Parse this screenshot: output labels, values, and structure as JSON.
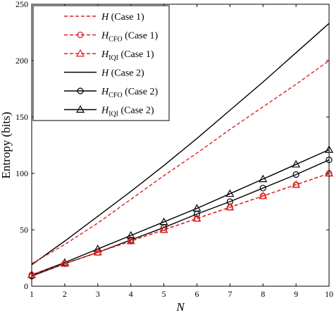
{
  "chart_data": {
    "type": "line",
    "xlabel": "N",
    "ylabel": "Entropy (bits)",
    "xlim": [
      1,
      10
    ],
    "ylim": [
      0,
      250
    ],
    "xticks": [
      1,
      2,
      3,
      4,
      5,
      6,
      7,
      8,
      9,
      10
    ],
    "yticks": [
      0,
      50,
      100,
      150,
      200,
      250
    ],
    "grid": false,
    "legend_position": "top-left",
    "x": [
      1,
      2,
      3,
      4,
      5,
      6,
      7,
      8,
      9,
      10
    ],
    "series": [
      {
        "id": "h-case1",
        "name_main": "H",
        "name_sub": "",
        "name_case": "(Case 1)",
        "color": "#e02020",
        "dash": "5,3",
        "marker": "none",
        "values": [
          20,
          37,
          56,
          77,
          98,
          118,
          139,
          159,
          179,
          200
        ]
      },
      {
        "id": "hcfo-case1",
        "name_main": "H",
        "name_sub": "CFO",
        "name_case": "(Case 1)",
        "color": "#e02020",
        "dash": "5,3",
        "marker": "circle",
        "values": [
          10,
          20,
          30,
          40,
          50,
          60,
          70,
          80,
          90,
          100
        ]
      },
      {
        "id": "hiqi-case1",
        "name_main": "H",
        "name_sub": "IQI",
        "name_case": "(Case 1)",
        "color": "#e02020",
        "dash": "5,3",
        "marker": "triangle",
        "values": [
          10,
          20,
          30,
          40,
          50,
          60,
          70,
          80,
          90,
          100
        ]
      },
      {
        "id": "h-case2",
        "name_main": "H",
        "name_sub": "",
        "name_case": "(Case 2)",
        "color": "#000000",
        "dash": "",
        "marker": "none",
        "values": [
          19,
          40,
          62,
          84,
          107,
          131,
          156,
          181,
          207,
          233
        ]
      },
      {
        "id": "hcfo-case2",
        "name_main": "H",
        "name_sub": "CFO",
        "name_case": "(Case 2)",
        "color": "#000000",
        "dash": "",
        "marker": "circle",
        "values": [
          9,
          20,
          30,
          41,
          52,
          64,
          75,
          87,
          99,
          112
        ]
      },
      {
        "id": "hiqi-case2",
        "name_main": "H",
        "name_sub": "IQI",
        "name_case": "(Case 2)",
        "color": "#000000",
        "dash": "",
        "marker": "triangle",
        "values": [
          10,
          21,
          33,
          45,
          57,
          69,
          82,
          95,
          108,
          121
        ]
      }
    ]
  }
}
